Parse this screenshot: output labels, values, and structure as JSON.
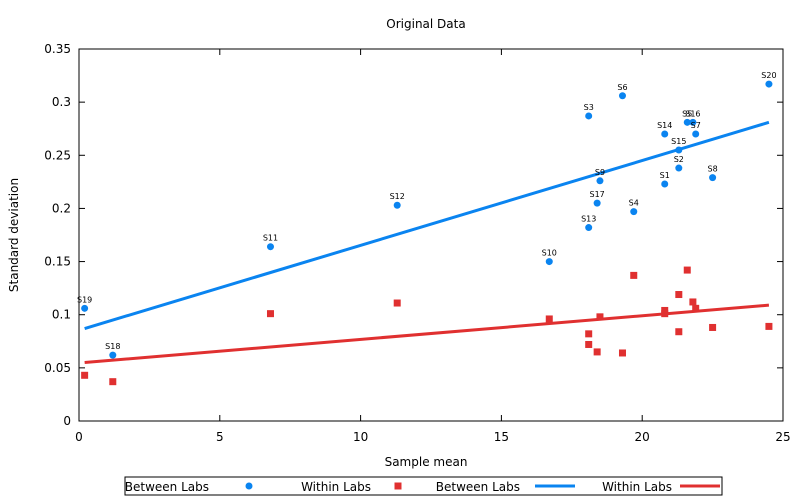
{
  "chart_data": {
    "type": "scatter",
    "title": "Original Data",
    "xlabel": "Sample mean",
    "ylabel": "Standard deviation",
    "xlim": [
      0,
      25
    ],
    "ylim": [
      0,
      0.35
    ],
    "x_ticks": [
      0,
      5,
      10,
      15,
      20,
      25
    ],
    "y_ticks": [
      0,
      0.05,
      0.1,
      0.15,
      0.2,
      0.25,
      0.3,
      0.35
    ],
    "grid": false,
    "legend_position": "bottom",
    "series": [
      {
        "name": "Between Labs",
        "kind": "points",
        "marker": "circle",
        "color": "#0a84f0",
        "points": [
          {
            "label": "S19",
            "x": 0.2,
            "y": 0.106
          },
          {
            "label": "S18",
            "x": 1.2,
            "y": 0.062
          },
          {
            "label": "S11",
            "x": 6.8,
            "y": 0.164
          },
          {
            "label": "S12",
            "x": 11.3,
            "y": 0.203
          },
          {
            "label": "S10",
            "x": 16.7,
            "y": 0.15
          },
          {
            "label": "S3",
            "x": 18.1,
            "y": 0.287
          },
          {
            "label": "S13",
            "x": 18.1,
            "y": 0.182
          },
          {
            "label": "S17",
            "x": 18.4,
            "y": 0.205
          },
          {
            "label": "S9",
            "x": 18.5,
            "y": 0.226
          },
          {
            "label": "S6",
            "x": 19.3,
            "y": 0.306
          },
          {
            "label": "S4",
            "x": 19.7,
            "y": 0.197
          },
          {
            "label": "S14",
            "x": 20.8,
            "y": 0.27
          },
          {
            "label": "S1",
            "x": 20.8,
            "y": 0.223
          },
          {
            "label": "S15",
            "x": 21.3,
            "y": 0.255
          },
          {
            "label": "S2",
            "x": 21.3,
            "y": 0.238
          },
          {
            "label": "S5",
            "x": 21.6,
            "y": 0.281
          },
          {
            "label": "S16",
            "x": 21.8,
            "y": 0.281
          },
          {
            "label": "S7",
            "x": 21.9,
            "y": 0.27
          },
          {
            "label": "S8",
            "x": 22.5,
            "y": 0.229
          },
          {
            "label": "S20",
            "x": 24.5,
            "y": 0.317
          }
        ]
      },
      {
        "name": "Within Labs",
        "kind": "points",
        "marker": "square",
        "color": "#e03030",
        "points": [
          {
            "x": 0.2,
            "y": 0.043
          },
          {
            "x": 1.2,
            "y": 0.037
          },
          {
            "x": 6.8,
            "y": 0.101
          },
          {
            "x": 11.3,
            "y": 0.111
          },
          {
            "x": 16.7,
            "y": 0.096
          },
          {
            "x": 18.1,
            "y": 0.082
          },
          {
            "x": 18.1,
            "y": 0.072
          },
          {
            "x": 18.4,
            "y": 0.065
          },
          {
            "x": 18.5,
            "y": 0.098
          },
          {
            "x": 19.3,
            "y": 0.064
          },
          {
            "x": 19.7,
            "y": 0.137
          },
          {
            "x": 20.8,
            "y": 0.104
          },
          {
            "x": 20.8,
            "y": 0.101
          },
          {
            "x": 21.3,
            "y": 0.119
          },
          {
            "x": 21.3,
            "y": 0.084
          },
          {
            "x": 21.6,
            "y": 0.142
          },
          {
            "x": 21.8,
            "y": 0.112
          },
          {
            "x": 21.9,
            "y": 0.106
          },
          {
            "x": 22.5,
            "y": 0.088
          },
          {
            "x": 24.5,
            "y": 0.089
          }
        ]
      },
      {
        "name": "Between Labs",
        "kind": "line",
        "color": "#0a84f0",
        "points": [
          {
            "x": 0.2,
            "y": 0.087
          },
          {
            "x": 24.5,
            "y": 0.281
          }
        ]
      },
      {
        "name": "Within Labs",
        "kind": "line",
        "color": "#e03030",
        "points": [
          {
            "x": 0.2,
            "y": 0.055
          },
          {
            "x": 24.5,
            "y": 0.109
          }
        ]
      }
    ]
  }
}
